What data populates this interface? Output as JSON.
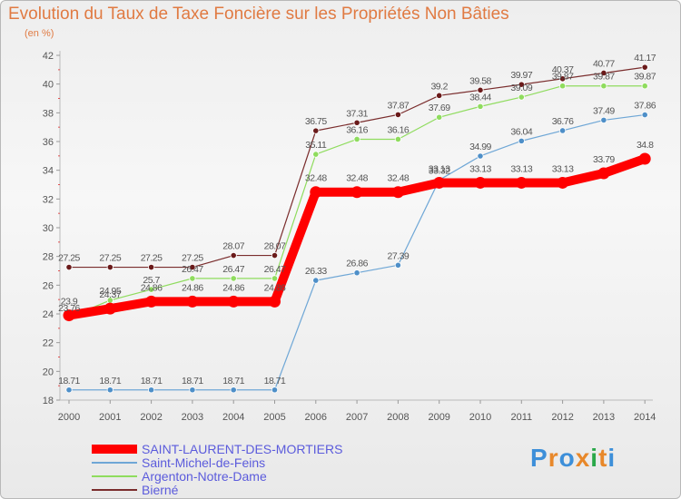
{
  "chart_data": {
    "type": "line",
    "title": "Evolution du Taux de Taxe Foncière sur les Propriétés Non Bâties",
    "unit_label": "(en %)",
    "xlabel": "",
    "ylabel": "(en %)",
    "x": [
      "2000",
      "2001",
      "2002",
      "2003",
      "2004",
      "2005",
      "2006",
      "2007",
      "2008",
      "2009",
      "2010",
      "2011",
      "2012",
      "2013",
      "2014"
    ],
    "ylim": [
      18,
      42
    ],
    "yticks": [
      "18",
      "20",
      "22",
      "24",
      "26",
      "28",
      "30",
      "32",
      "34",
      "36",
      "38",
      "40",
      "42"
    ],
    "grid": false,
    "legend_position": "bottom-left",
    "series": [
      {
        "name": "SAINT-LAURENT-DES-MORTIERS",
        "color": "#ff0000",
        "values": [
          23.9,
          24.37,
          24.86,
          24.86,
          24.86,
          24.86,
          32.48,
          32.48,
          32.48,
          33.13,
          33.13,
          33.13,
          33.13,
          33.79,
          34.8
        ],
        "labels": [
          "23.9",
          "24.37",
          "24.86",
          "24.86",
          "24.86",
          "24.86",
          "32.48",
          "32.48",
          "32.48",
          "33.13",
          "33.13",
          "33.13",
          "33.13",
          "33.79",
          "34.8"
        ]
      },
      {
        "name": "Saint-Michel-de-Feins",
        "color": "#6fa7d6",
        "values": [
          18.71,
          18.71,
          18.71,
          18.71,
          18.71,
          18.71,
          26.33,
          26.86,
          27.39,
          33.32,
          34.99,
          36.04,
          36.76,
          37.49,
          37.86
        ],
        "labels": [
          "18.71",
          "18.71",
          "18.71",
          "18.71",
          "18.71",
          "18.71",
          "26.33",
          "26.86",
          "27.39",
          "33.32",
          "34.99",
          "36.04",
          "36.76",
          "37.49",
          "37.86"
        ]
      },
      {
        "name": "Argenton-Notre-Dame",
        "color": "#8fdc5e",
        "values": [
          23.76,
          24.95,
          25.7,
          26.47,
          26.47,
          26.47,
          35.11,
          36.16,
          36.16,
          37.69,
          38.44,
          39.09,
          39.87,
          39.87,
          39.87
        ],
        "labels": [
          "23.76",
          "24.95",
          "25.7",
          "26.47",
          "26.47",
          "26.47",
          "35.11",
          "36.16",
          "36.16",
          "37.69",
          "38.44",
          "39.09",
          "39.87",
          "39.87",
          "39.87"
        ]
      },
      {
        "name": "Bierné",
        "color": "#7a2d2d",
        "values": [
          27.25,
          27.25,
          27.25,
          27.25,
          28.07,
          28.07,
          36.75,
          37.31,
          37.87,
          39.2,
          39.58,
          39.97,
          40.37,
          40.77,
          41.17
        ],
        "labels": [
          "27.25",
          "27.25",
          "27.25",
          "27.25",
          "28.07",
          "28.07",
          "36.75",
          "37.31",
          "37.87",
          "39.2",
          "39.58",
          "39.97",
          "40.37",
          "40.77",
          "41.17"
        ]
      }
    ]
  },
  "logo": {
    "text": "Proxiti",
    "colors": [
      "#3d8fd9",
      "#e8882a",
      "#3d8fd9",
      "#e8882a",
      "#2aa84a",
      "#e8882a",
      "#3d8fd9"
    ]
  }
}
